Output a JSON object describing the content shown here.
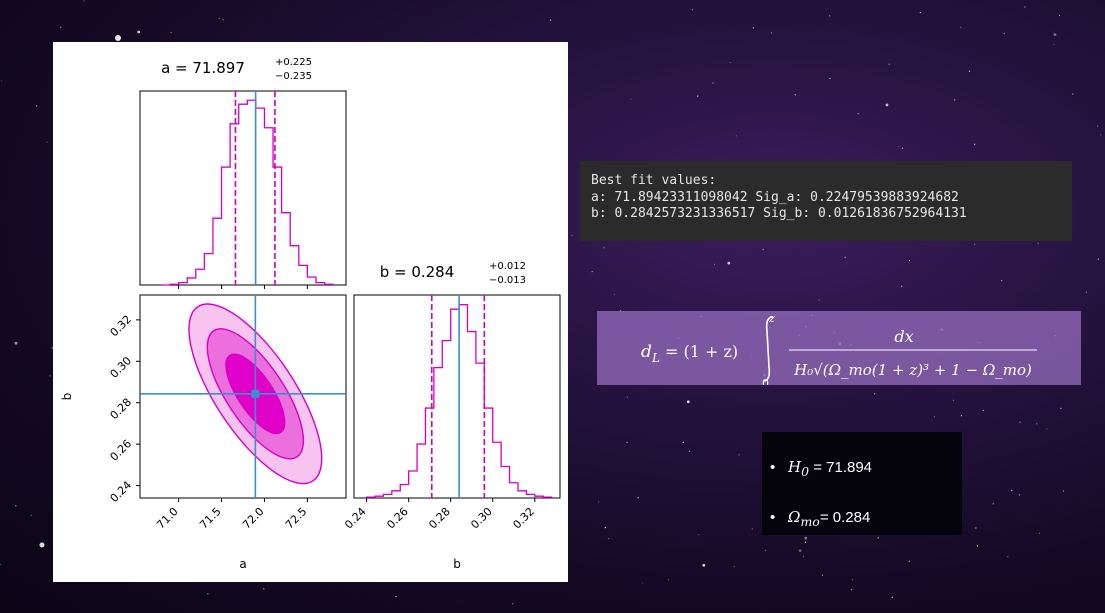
{
  "chart_data": [
    {
      "type": "histogram",
      "title_param": "a",
      "title_value": "71.897",
      "title_plus": "+0.225",
      "title_minus": "−0.235",
      "median": 71.897,
      "quantile_lo": 71.662,
      "quantile_hi": 72.122,
      "xlim": [
        70.55,
        72.95
      ],
      "bins": [
        70.8,
        70.9,
        71.0,
        71.1,
        71.2,
        71.3,
        71.4,
        71.5,
        71.6,
        71.7,
        71.8,
        71.9,
        72.0,
        72.1,
        72.2,
        72.3,
        72.4,
        72.5,
        72.6,
        72.7,
        72.8
      ],
      "counts": [
        0,
        1,
        3,
        9,
        20,
        40,
        85,
        150,
        205,
        230,
        235,
        225,
        200,
        150,
        92,
        50,
        25,
        10,
        3,
        1
      ]
    },
    {
      "type": "contour",
      "xlabel": "a",
      "ylabel": "b",
      "x_ticks": [
        "71.0",
        "71.5",
        "72.0",
        "72.5"
      ],
      "y_ticks": [
        "0.24",
        "0.26",
        "0.28",
        "0.30",
        "0.32"
      ],
      "xlim": [
        70.55,
        72.95
      ],
      "ylim": [
        0.234,
        0.332
      ],
      "center": [
        71.894,
        0.2843
      ],
      "sigma_a": 0.2248,
      "sigma_b": 0.0126,
      "correlation": -0.72,
      "levels_sigma": [
        1,
        2,
        3
      ],
      "fill_colors": [
        "#e100c8",
        "#eb6fdc",
        "#f6c4ef"
      ],
      "truth_a": 71.894,
      "truth_b": 0.2843
    },
    {
      "type": "histogram",
      "title_param": "b",
      "title_value": "0.284",
      "title_plus": "+0.012",
      "title_minus": "−0.013",
      "xlabel": "b",
      "x_ticks": [
        "0.24",
        "0.26",
        "0.28",
        "0.30",
        "0.32"
      ],
      "median": 0.284,
      "quantile_lo": 0.271,
      "quantile_hi": 0.296,
      "xlim": [
        0.234,
        0.332
      ],
      "bins": [
        0.24,
        0.244,
        0.248,
        0.252,
        0.256,
        0.26,
        0.264,
        0.268,
        0.272,
        0.276,
        0.28,
        0.284,
        0.288,
        0.292,
        0.296,
        0.3,
        0.304,
        0.308,
        0.312,
        0.316,
        0.32,
        0.324,
        0.328
      ],
      "counts": [
        1,
        2,
        4,
        8,
        15,
        30,
        60,
        100,
        145,
        175,
        210,
        215,
        185,
        150,
        100,
        62,
        35,
        17,
        8,
        4,
        2,
        1
      ]
    }
  ],
  "fit_output": {
    "line1": "Best fit values:",
    "line2": "a: 71.89423311098042 Sig_a: 0.22479539883924682",
    "line3": "b: 0.2842573231336517 Sig_b: 0.01261836752964131"
  },
  "equation": {
    "lhs": "d",
    "lhs_sub": "L",
    "prefactor": "= (1 + z)",
    "upper_limit": "z",
    "lower_limit": "0",
    "numerator": "dx",
    "denominator": "H₀√(Ω_mo(1 + z)³ + 1 − Ω_mo)"
  },
  "results": {
    "h0_symbol": "H",
    "h0_sub": "0",
    "h0_value": " = 71.894",
    "omega_symbol": "Ω",
    "omega_sub": "mo",
    "omega_value": "= 0.284",
    "bullet": "•"
  },
  "colors": {
    "hist_line": "#d600c4",
    "truth_line": "#3b8fd0",
    "quantile_line": "#cc00b4"
  }
}
